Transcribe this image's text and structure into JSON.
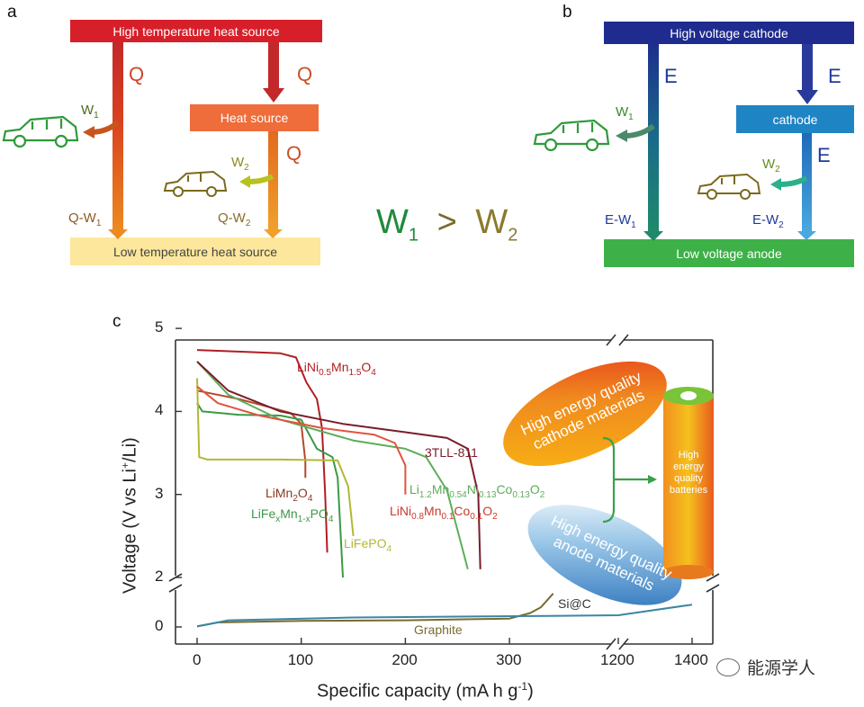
{
  "panel_a": {
    "letter": "a",
    "high_source": "High temperature heat source",
    "heat_source": "Heat source",
    "low_source": "Low temperature heat source",
    "q": "Q",
    "w": "W",
    "q_minus_w": "Q-W",
    "sub1": "1",
    "sub2": "2"
  },
  "panel_b": {
    "letter": "b",
    "high_cathode": "High voltage cathode",
    "cathode": "cathode",
    "low_anode": "Low voltage anode",
    "e": "E",
    "w": "W",
    "e_minus_w": "E-W",
    "sub1": "1",
    "sub2": "2"
  },
  "comparison": {
    "w": "W",
    "sub1": "1",
    "sub2": "2",
    "operator": ">"
  },
  "panel_c": {
    "letter": "c",
    "xlabel_prefix": "Specific capacity (mA h g",
    "xlabel_sup": "-1",
    "xlabel_suffix": ")",
    "ylabel_prefix": "Voltage (V vs Li",
    "ylabel_sup": "+",
    "ylabel_suffix": "/Li)",
    "cathode_bubble": [
      "High energy quality",
      "cathode materials"
    ],
    "anode_bubble": [
      "High energy quality",
      "anode materials"
    ],
    "battery_text": [
      "High",
      "energy",
      "quality",
      "batteries"
    ],
    "watermark": "能源学人"
  },
  "chart_data": {
    "type": "line",
    "xlabel": "Specific capacity (mA h g-1)",
    "ylabel": "Voltage (V vs Li+/Li)",
    "x_ticks": [
      "0",
      "100",
      "200",
      "300",
      "1200",
      "1400"
    ],
    "y_ticks": [
      "0",
      "2",
      "3",
      "4",
      "5"
    ],
    "x_axis_break": [
      350,
      1150
    ],
    "y_axis_break": [
      0.6,
      2.0
    ],
    "series": [
      {
        "name": "LiNi0.5Mn1.5O4",
        "color": "#b01e23",
        "points": [
          [
            0,
            4.74
          ],
          [
            40,
            4.72
          ],
          [
            80,
            4.7
          ],
          [
            95,
            4.65
          ],
          [
            105,
            4.35
          ],
          [
            115,
            4.15
          ],
          [
            120,
            3.8
          ],
          [
            123,
            3.0
          ],
          [
            125,
            2.3
          ]
        ]
      },
      {
        "name": "LiMn2O4",
        "color": "#b5482a",
        "points": [
          [
            0,
            4.25
          ],
          [
            40,
            4.15
          ],
          [
            70,
            4.05
          ],
          [
            90,
            3.98
          ],
          [
            100,
            3.85
          ],
          [
            104,
            3.4
          ],
          [
            104,
            3.2
          ]
        ]
      },
      {
        "name": "LiFexMn1-xPO4",
        "color": "#3a9a45",
        "points": [
          [
            0,
            4.1
          ],
          [
            5,
            4.0
          ],
          [
            40,
            3.96
          ],
          [
            80,
            3.95
          ],
          [
            100,
            3.9
          ],
          [
            115,
            3.55
          ],
          [
            130,
            3.45
          ],
          [
            135,
            3.2
          ],
          [
            140,
            2.0
          ]
        ]
      },
      {
        "name": "LiFePO4",
        "color": "#b2b835",
        "points": [
          [
            0,
            4.4
          ],
          [
            2,
            3.45
          ],
          [
            10,
            3.42
          ],
          [
            80,
            3.42
          ],
          [
            135,
            3.41
          ],
          [
            145,
            3.1
          ],
          [
            150,
            2.5
          ]
        ]
      },
      {
        "name": "Li1.2Mn0.54Ni0.13Co0.13O2",
        "color": "#5dad5a",
        "points": [
          [
            0,
            4.6
          ],
          [
            30,
            4.2
          ],
          [
            80,
            3.9
          ],
          [
            150,
            3.65
          ],
          [
            200,
            3.55
          ],
          [
            220,
            3.45
          ],
          [
            240,
            3.05
          ],
          [
            260,
            2.1
          ]
        ]
      },
      {
        "name": "LiNi0.8Mn0.1Co0.1O2",
        "color": "#e0543f",
        "points": [
          [
            0,
            4.3
          ],
          [
            20,
            4.1
          ],
          [
            60,
            3.95
          ],
          [
            120,
            3.8
          ],
          [
            170,
            3.72
          ],
          [
            190,
            3.62
          ],
          [
            200,
            3.35
          ],
          [
            200,
            3.0
          ]
        ]
      },
      {
        "name": "3TLL-811",
        "color": "#7a1d2a",
        "points": [
          [
            0,
            4.6
          ],
          [
            30,
            4.25
          ],
          [
            80,
            4.0
          ],
          [
            140,
            3.85
          ],
          [
            200,
            3.75
          ],
          [
            240,
            3.68
          ],
          [
            260,
            3.55
          ],
          [
            270,
            3.0
          ],
          [
            272,
            2.1
          ]
        ]
      },
      {
        "name": "Graphite",
        "color": "#7a6b2e",
        "points": [
          [
            0,
            0.01
          ],
          [
            20,
            0.08
          ],
          [
            100,
            0.11
          ],
          [
            200,
            0.12
          ],
          [
            300,
            0.15
          ],
          [
            320,
            0.25
          ],
          [
            330,
            0.35
          ],
          [
            342,
            0.6
          ]
        ]
      },
      {
        "name": "Si@C",
        "color": "#3b86a5",
        "points": [
          [
            0,
            0.01
          ],
          [
            30,
            0.12
          ],
          [
            150,
            0.17
          ],
          [
            350,
            0.2
          ],
          [
            1200,
            0.21
          ],
          [
            1400,
            0.4
          ]
        ]
      }
    ]
  }
}
